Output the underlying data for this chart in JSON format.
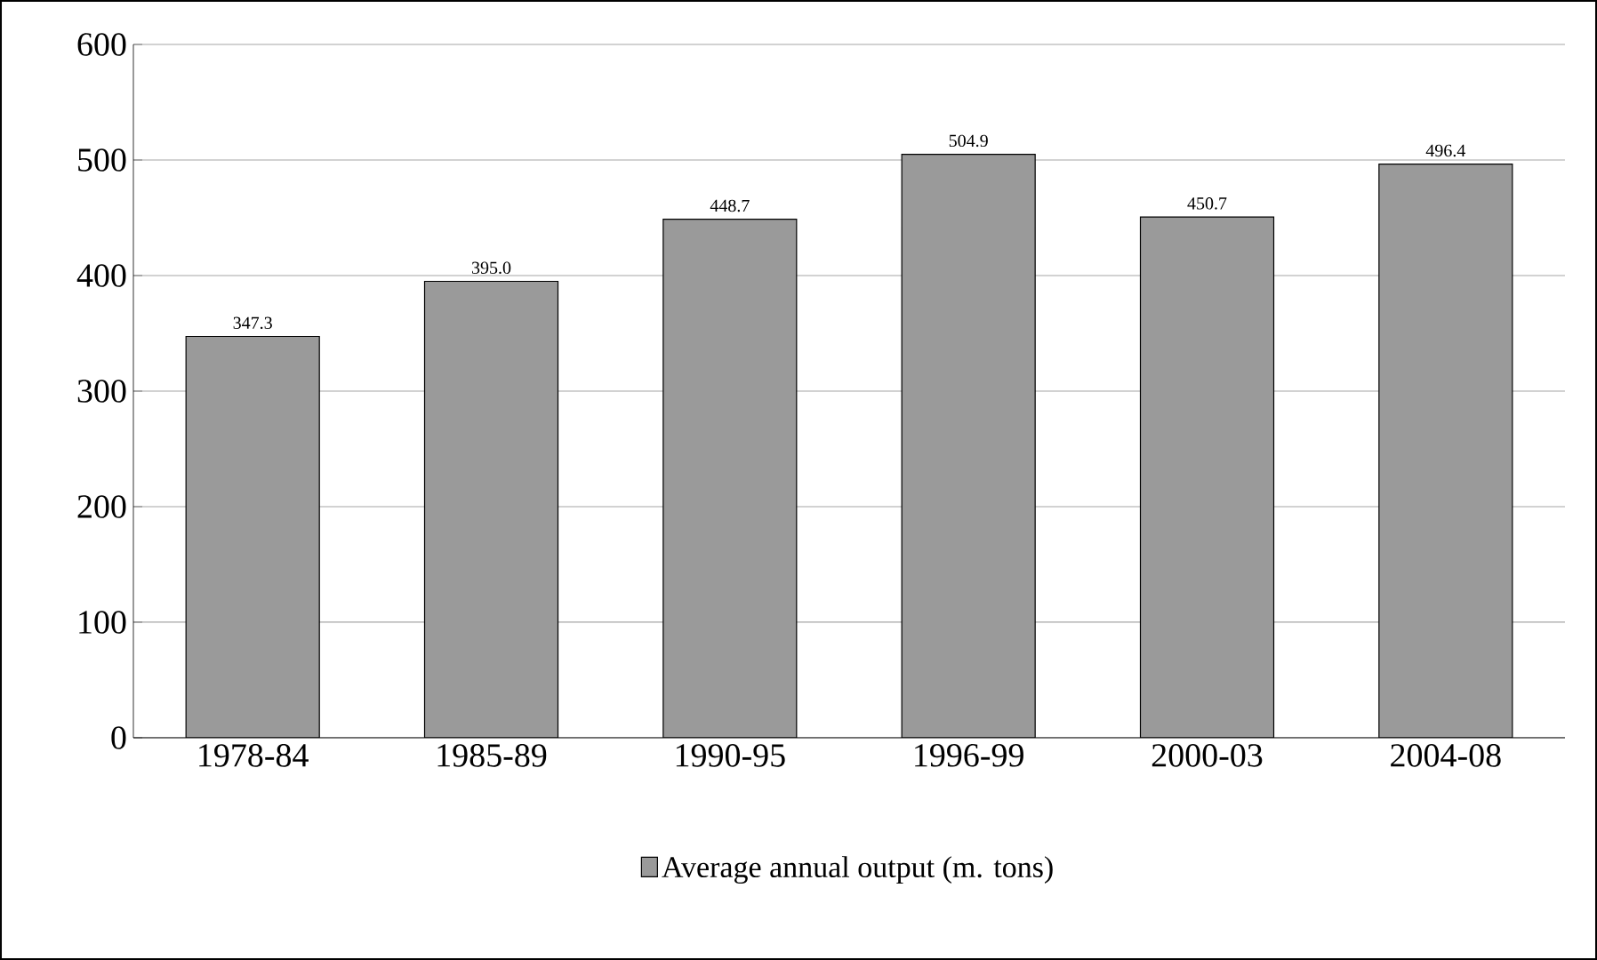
{
  "chart_data": {
    "type": "bar",
    "categories": [
      "1978-84",
      "1985-89",
      "1990-95",
      "1996-99",
      "2000-03",
      "2004-08"
    ],
    "series": [
      {
        "name": "Average annual output (m. tons)",
        "color": "#9a9a9a",
        "values": [
          347.3,
          395.0,
          448.7,
          504.9,
          450.7,
          496.4
        ],
        "value_labels": [
          "347.3",
          "395.0",
          "448.7",
          "504.9",
          "450.7",
          "496.4"
        ]
      }
    ],
    "ylim": [
      0,
      600
    ],
    "yticks": [
      0,
      100,
      200,
      300,
      400,
      500,
      600
    ],
    "grid": "y",
    "legend": "bottom"
  }
}
